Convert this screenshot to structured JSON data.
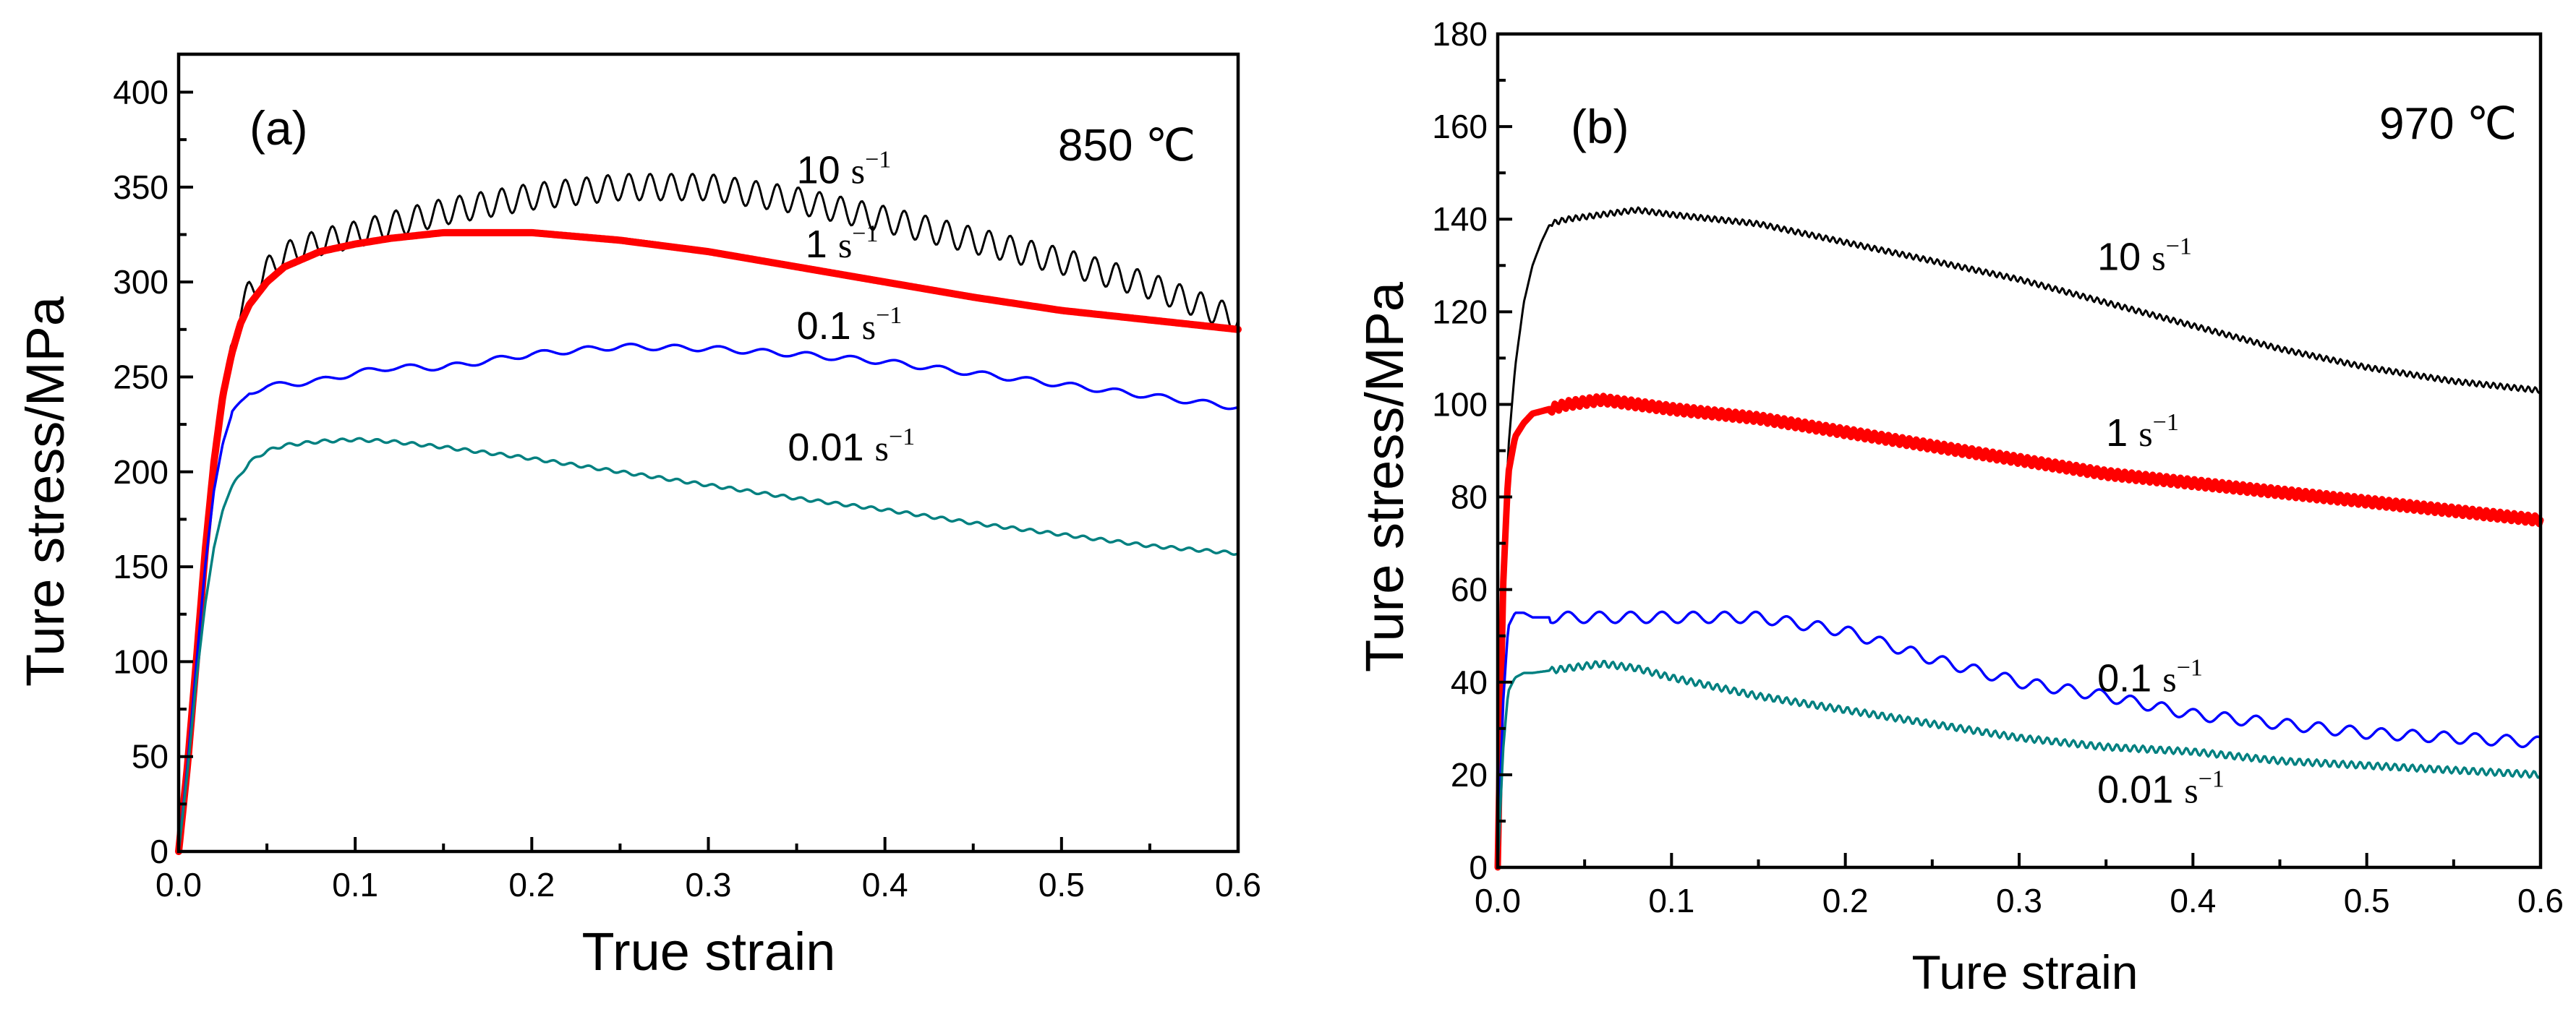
{
  "chart_data": [
    {
      "type": "line",
      "panel_label": "(a)",
      "temperature_label": "850 ℃",
      "xlabel": "True strain",
      "ylabel": "Ture stress/MPa",
      "xlim": [
        0,
        0.6
      ],
      "ylim": [
        0,
        420
      ],
      "x_ticks": [
        "0.0",
        "0.1",
        "0.2",
        "0.3",
        "0.4",
        "0.5",
        "0.6"
      ],
      "y_ticks": [
        "0",
        "50",
        "100",
        "150",
        "200",
        "250",
        "300",
        "350",
        "400"
      ],
      "grid": false,
      "series": [
        {
          "name": "10 s-1",
          "label_num": "10",
          "label_unit": "s",
          "label_exp": "−1",
          "label_at": [
            0.35,
            352
          ],
          "color": "#000000",
          "width": 3,
          "wave_amp": 7,
          "wave_period": 0.012,
          "x": [
            0.0,
            0.005,
            0.01,
            0.015,
            0.02,
            0.025,
            0.03,
            0.035,
            0.04,
            0.05,
            0.06,
            0.08,
            0.1,
            0.12,
            0.15,
            0.2,
            0.25,
            0.3,
            0.35,
            0.4,
            0.45,
            0.5,
            0.55,
            0.6
          ],
          "y": [
            0,
            45,
            100,
            160,
            210,
            245,
            268,
            285,
            294,
            306,
            314,
            321,
            325,
            330,
            337,
            345,
            350,
            350,
            343,
            333,
            322,
            311,
            298,
            280
          ]
        },
        {
          "name": "1 s-1",
          "label_num": "1",
          "label_unit": "s",
          "label_exp": "−1",
          "label_at": [
            0.355,
            313
          ],
          "color": "#ff0000",
          "width": 10,
          "wave_amp": 0,
          "wave_period": 0,
          "x": [
            0.0,
            0.005,
            0.01,
            0.015,
            0.02,
            0.025,
            0.03,
            0.035,
            0.04,
            0.05,
            0.06,
            0.08,
            0.1,
            0.12,
            0.15,
            0.2,
            0.25,
            0.3,
            0.35,
            0.4,
            0.45,
            0.5,
            0.55,
            0.6
          ],
          "y": [
            0,
            45,
            100,
            158,
            205,
            240,
            262,
            278,
            288,
            300,
            308,
            316,
            320,
            323,
            326,
            326,
            322,
            316,
            308,
            300,
            292,
            285,
            280,
            275
          ]
        },
        {
          "name": "0.1 s-1",
          "label_num": "0.1",
          "label_unit": "s",
          "label_exp": "−1",
          "label_at": [
            0.35,
            270
          ],
          "color": "#0000ff",
          "width": 3.5,
          "wave_amp": 1.5,
          "wave_period": 0.025,
          "x": [
            0.0,
            0.005,
            0.01,
            0.015,
            0.02,
            0.025,
            0.03,
            0.04,
            0.05,
            0.06,
            0.08,
            0.1,
            0.12,
            0.15,
            0.2,
            0.25,
            0.3,
            0.35,
            0.4,
            0.45,
            0.5,
            0.55,
            0.6
          ],
          "y": [
            0,
            45,
            98,
            150,
            190,
            215,
            230,
            242,
            245,
            246,
            248,
            252,
            255,
            255,
            262,
            266,
            265,
            262,
            258,
            252,
            246,
            240,
            234
          ]
        },
        {
          "name": "0.01 s-1",
          "label_num": "0.01",
          "label_unit": "s",
          "label_exp": "−1",
          "label_at": [
            0.345,
            206
          ],
          "color": "#008080",
          "width": 3.5,
          "wave_amp": 0.8,
          "wave_period": 0.01,
          "x": [
            0.0,
            0.005,
            0.01,
            0.015,
            0.02,
            0.025,
            0.03,
            0.04,
            0.05,
            0.06,
            0.08,
            0.1,
            0.12,
            0.15,
            0.2,
            0.25,
            0.3,
            0.35,
            0.4,
            0.45,
            0.5,
            0.55,
            0.6
          ],
          "y": [
            0,
            42,
            90,
            130,
            160,
            180,
            192,
            205,
            211,
            214,
            216,
            217,
            216,
            213,
            207,
            200,
            193,
            186,
            180,
            173,
            167,
            161,
            157
          ]
        }
      ]
    },
    {
      "type": "line",
      "panel_label": "(b)",
      "temperature_label": "970 ℃",
      "xlabel": "Ture strain",
      "ylabel": "Ture stress/MPa",
      "xlim": [
        0,
        0.6
      ],
      "ylim": [
        0,
        180
      ],
      "x_ticks": [
        "0.0",
        "0.1",
        "0.2",
        "0.3",
        "0.4",
        "0.5",
        "0.6"
      ],
      "y_ticks": [
        "0",
        "20",
        "40",
        "60",
        "80",
        "100",
        "120",
        "140",
        "160",
        "180"
      ],
      "grid": false,
      "series": [
        {
          "name": "10 s-1",
          "label_num": "10",
          "label_unit": "s",
          "label_exp": "−1",
          "label_at": [
            0.345,
            129
          ],
          "color": "#000000",
          "width": 3,
          "wave_amp": 0.6,
          "wave_period": 0.004,
          "x": [
            0.0,
            0.003,
            0.006,
            0.01,
            0.015,
            0.02,
            0.025,
            0.03,
            0.04,
            0.06,
            0.08,
            0.1,
            0.15,
            0.2,
            0.25,
            0.3,
            0.35,
            0.4,
            0.45,
            0.5,
            0.55,
            0.6
          ],
          "y": [
            0,
            60,
            90,
            108,
            122,
            130,
            135,
            139,
            140,
            141,
            142,
            141,
            139,
            135,
            131,
            127,
            122,
            117,
            112,
            108,
            105,
            103
          ]
        },
        {
          "name": "1 s-1",
          "label_num": "1",
          "label_unit": "s",
          "label_exp": "−1",
          "label_at": [
            0.35,
            91
          ],
          "color": "#ff0000",
          "width": 9,
          "wave_amp": 0.9,
          "wave_period": 0.004,
          "x": [
            0.0,
            0.003,
            0.006,
            0.01,
            0.015,
            0.02,
            0.03,
            0.04,
            0.06,
            0.08,
            0.1,
            0.15,
            0.2,
            0.25,
            0.3,
            0.35,
            0.4,
            0.45,
            0.5,
            0.55,
            0.6
          ],
          "y": [
            0,
            60,
            85,
            93,
            96,
            98,
            99,
            100,
            101,
            100,
            99,
            97,
            94,
            91,
            88,
            85,
            83,
            81,
            79,
            77,
            75
          ]
        },
        {
          "name": "0.1 s-1",
          "label_num": "0.1",
          "label_unit": "s",
          "label_exp": "−1",
          "label_at": [
            0.345,
            38
          ],
          "color": "#0000ff",
          "width": 3.5,
          "wave_amp": 1.2,
          "wave_period": 0.018,
          "x": [
            0.0,
            0.003,
            0.006,
            0.01,
            0.015,
            0.02,
            0.04,
            0.06,
            0.08,
            0.1,
            0.15,
            0.2,
            0.25,
            0.3,
            0.35,
            0.4,
            0.45,
            0.5,
            0.55,
            0.6
          ],
          "y": [
            0,
            35,
            52,
            55,
            55,
            54,
            54,
            54,
            54,
            54,
            54,
            51,
            45,
            40,
            37,
            33,
            31,
            29,
            28,
            27
          ]
        },
        {
          "name": "0.01 s-1",
          "label_num": "0.01",
          "label_unit": "s",
          "label_exp": "−1",
          "label_at": [
            0.345,
            14
          ],
          "color": "#008080",
          "width": 3.5,
          "wave_amp": 0.7,
          "wave_period": 0.005,
          "x": [
            0.0,
            0.003,
            0.006,
            0.01,
            0.015,
            0.02,
            0.04,
            0.06,
            0.08,
            0.1,
            0.15,
            0.2,
            0.25,
            0.3,
            0.35,
            0.4,
            0.45,
            0.5,
            0.55,
            0.6
          ],
          "y": [
            0,
            25,
            38,
            41,
            42,
            42,
            43,
            44,
            43,
            41,
            37,
            34,
            31,
            28,
            26,
            25,
            23,
            22,
            21,
            20
          ]
        }
      ]
    }
  ]
}
